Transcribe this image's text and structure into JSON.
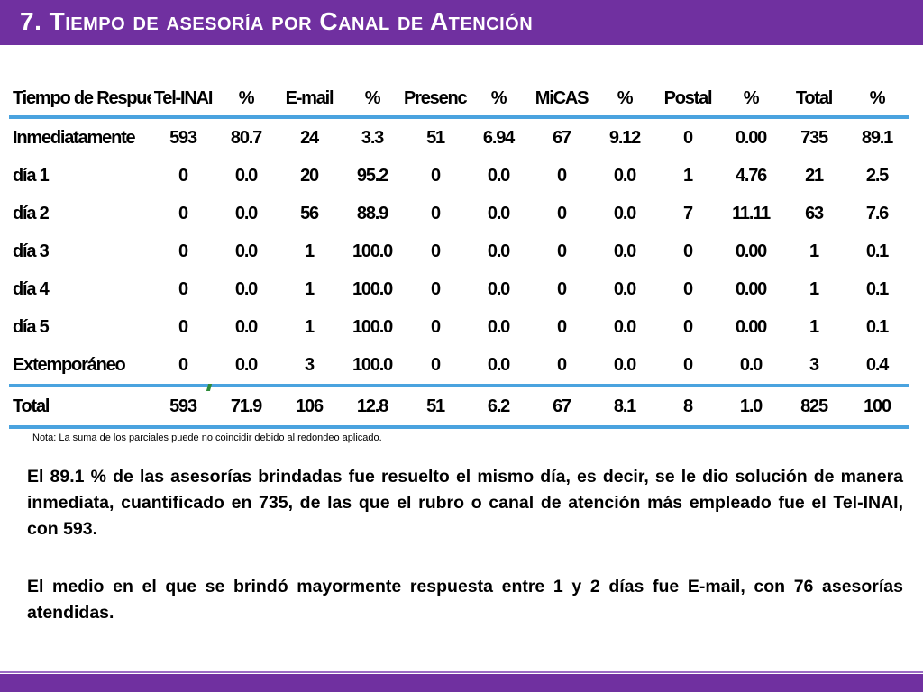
{
  "slide": {
    "title": "7. Tiempo de asesoría por Canal de Atención",
    "colors": {
      "header": "#7030a0",
      "table_rule": "#4aa3df"
    }
  },
  "table": {
    "headers": [
      "Tiempo de Respuesta",
      "Tel-INAI",
      "%",
      "E-mail",
      "%",
      "Presencial",
      "%",
      "MiCAS",
      "%",
      "Postal",
      "%",
      "Total",
      "%"
    ],
    "rows": [
      [
        "Inmediatamente",
        "593",
        "80.7",
        "24",
        "3.3",
        "51",
        "6.94",
        "67",
        "9.12",
        "0",
        "0.00",
        "735",
        "89.1"
      ],
      [
        "día 1",
        "0",
        "0.0",
        "20",
        "95.2",
        "0",
        "0.0",
        "0",
        "0.0",
        "1",
        "4.76",
        "21",
        "2.5"
      ],
      [
        "día 2",
        "0",
        "0.0",
        "56",
        "88.9",
        "0",
        "0.0",
        "0",
        "0.0",
        "7",
        "11.11",
        "63",
        "7.6"
      ],
      [
        "día 3",
        "0",
        "0.0",
        "1",
        "100.0",
        "0",
        "0.0",
        "0",
        "0.0",
        "0",
        "0.00",
        "1",
        "0.1"
      ],
      [
        "día 4",
        "0",
        "0.0",
        "1",
        "100.0",
        "0",
        "0.0",
        "0",
        "0.0",
        "0",
        "0.00",
        "1",
        "0.1"
      ],
      [
        "día 5",
        "0",
        "0.0",
        "1",
        "100.0",
        "0",
        "0.0",
        "0",
        "0.0",
        "0",
        "0.00",
        "1",
        "0.1"
      ],
      [
        "Extemporáneo",
        "0",
        "0.0",
        "3",
        "100.0",
        "0",
        "0.0",
        "0",
        "0.0",
        "0",
        "0.0",
        "3",
        "0.4"
      ]
    ],
    "total_row": [
      "Total",
      "593",
      "71.9",
      "106",
      "12.8",
      "51",
      "6.2",
      "67",
      "8.1",
      "8",
      "1.0",
      "825",
      "100"
    ]
  },
  "note": "Nota: La suma de los parciales puede no coincidir debido al redondeo aplicado.",
  "paragraphs": [
    "El 89.1 % de las asesorías brindadas fue resuelto el mismo día, es decir, se le dio solución de manera inmediata, cuantificado en 735, de las que el rubro o canal de atención más empleado fue el Tel-INAI, con 593.",
    "El medio en el que se brindó mayormente respuesta entre 1 y 2 días fue E-mail, con 76 asesorías atendidas."
  ]
}
